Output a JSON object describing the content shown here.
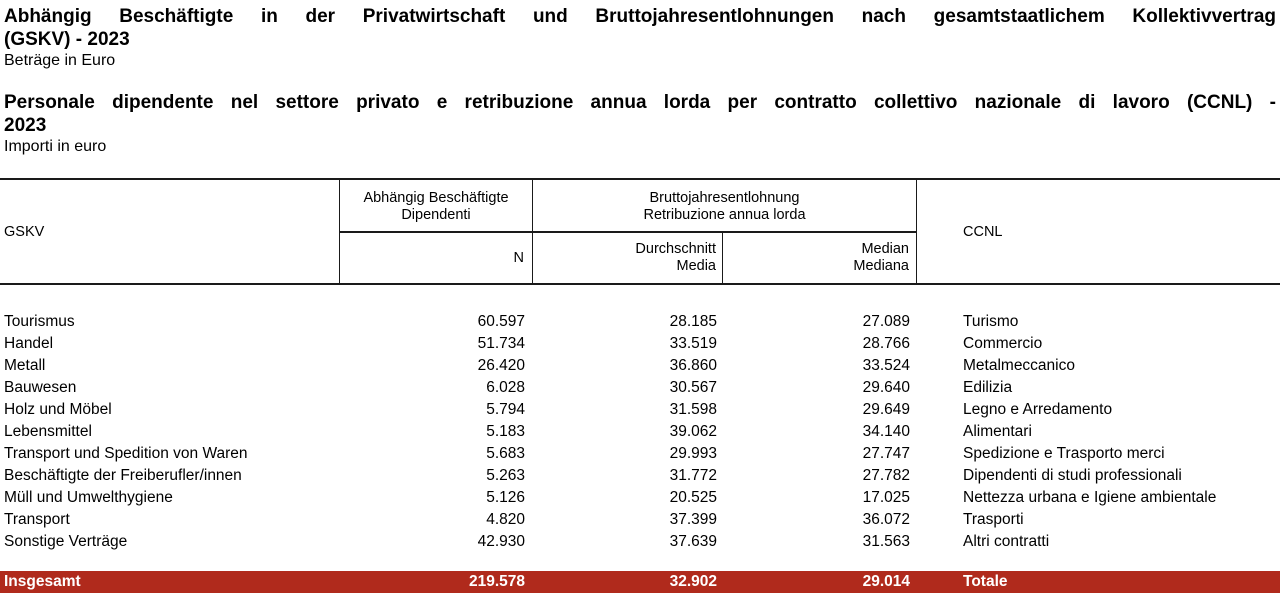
{
  "page": {
    "title_de": {
      "line1": "Abhängig Beschäftigte in der Privatwirtschaft und Bruttojahresentlohnungen nach gesamtstaatlichem Kollektivvertrag",
      "line2": "(GSKV) - 2023",
      "subtitle": "Beträge in Euro"
    },
    "title_it": {
      "line1": "Personale dipendente nel settore privato e retribuzione annua lorda per contratto collettivo nazionale di lavoro (CCNL) -",
      "line2": "2023",
      "subtitle": "Importi in euro"
    }
  },
  "table": {
    "header": {
      "gskv": "GSKV",
      "ccnl": "CCNL",
      "group_employees_de": "Abhängig Beschäftigte",
      "group_employees_it": "Dipendenti",
      "group_pay_de": "Bruttojahresentlohnung",
      "group_pay_it": "Retribuzione annua lorda",
      "sub_n": "N",
      "sub_mean_de": "Durchschnitt",
      "sub_mean_it": "Media",
      "sub_median_de": "Median",
      "sub_median_it": "Mediana"
    },
    "rows": [
      {
        "gskv": "Tourismus",
        "n": "60.597",
        "mean": "28.185",
        "median": "27.089",
        "ccnl": "Turismo"
      },
      {
        "gskv": "Handel",
        "n": "51.734",
        "mean": "33.519",
        "median": "28.766",
        "ccnl": "Commercio"
      },
      {
        "gskv": "Metall",
        "n": "26.420",
        "mean": "36.860",
        "median": "33.524",
        "ccnl": "Metalmeccanico"
      },
      {
        "gskv": "Bauwesen",
        "n": "6.028",
        "mean": "30.567",
        "median": "29.640",
        "ccnl": "Edilizia"
      },
      {
        "gskv": "Holz und Möbel",
        "n": "5.794",
        "mean": "31.598",
        "median": "29.649",
        "ccnl": "Legno e Arredamento"
      },
      {
        "gskv": "Lebensmittel",
        "n": "5.183",
        "mean": "39.062",
        "median": "34.140",
        "ccnl": "Alimentari"
      },
      {
        "gskv": "Transport und Spedition von Waren",
        "n": "5.683",
        "mean": "29.993",
        "median": "27.747",
        "ccnl": "Spedizione e Trasporto merci"
      },
      {
        "gskv": "Beschäftigte der Freiberufler/innen",
        "n": "5.263",
        "mean": "31.772",
        "median": "27.782",
        "ccnl": "Dipendenti di studi professionali"
      },
      {
        "gskv": "Müll und Umwelthygiene",
        "n": "5.126",
        "mean": "20.525",
        "median": "17.025",
        "ccnl": "Nettezza urbana e Igiene ambientale"
      },
      {
        "gskv": "Transport",
        "n": "4.820",
        "mean": "37.399",
        "median": "36.072",
        "ccnl": "Trasporti"
      },
      {
        "gskv": "Sonstige Verträge",
        "n": "42.930",
        "mean": "37.639",
        "median": "31.563",
        "ccnl": "Altri contratti"
      }
    ],
    "total": {
      "gskv": "Insgesamt",
      "n": "219.578",
      "mean": "32.902",
      "median": "29.014",
      "ccnl": "Totale"
    }
  },
  "colors": {
    "total_bg": "#B02A1C",
    "total_text": "#FFFFFF",
    "border": "#1A1A1A"
  },
  "chart_data": {
    "type": "table",
    "title": "Abhängig Beschäftigte in der Privatwirtschaft und Bruttojahresentlohnungen nach gesamtstaatlichem Kollektivvertrag (GSKV) - 2023 / Personale dipendente nel settore privato e retribuzione annua lorda per contratto collettivo nazionale di lavoro (CCNL) - 2023",
    "subtitle": "Beträge in Euro / Importi in euro",
    "columns": [
      "GSKV",
      "Abhängig Beschäftigte / Dipendenti — N",
      "Bruttojahresentlohnung Durchschnitt / Retribuzione annua lorda Media",
      "Bruttojahresentlohnung Median / Retribuzione annua lorda Mediana",
      "CCNL"
    ],
    "rows": [
      {
        "gskv": "Tourismus",
        "n": 60597,
        "mean": 28185,
        "median": 27089,
        "ccnl": "Turismo"
      },
      {
        "gskv": "Handel",
        "n": 51734,
        "mean": 33519,
        "median": 28766,
        "ccnl": "Commercio"
      },
      {
        "gskv": "Metall",
        "n": 26420,
        "mean": 36860,
        "median": 33524,
        "ccnl": "Metalmeccanico"
      },
      {
        "gskv": "Bauwesen",
        "n": 6028,
        "mean": 30567,
        "median": 29640,
        "ccnl": "Edilizia"
      },
      {
        "gskv": "Holz und Möbel",
        "n": 5794,
        "mean": 31598,
        "median": 29649,
        "ccnl": "Legno e Arredamento"
      },
      {
        "gskv": "Lebensmittel",
        "n": 5183,
        "mean": 39062,
        "median": 34140,
        "ccnl": "Alimentari"
      },
      {
        "gskv": "Transport und Spedition von Waren",
        "n": 5683,
        "mean": 29993,
        "median": 27747,
        "ccnl": "Spedizione e Trasporto merci"
      },
      {
        "gskv": "Beschäftigte der Freiberufler/innen",
        "n": 5263,
        "mean": 31772,
        "median": 27782,
        "ccnl": "Dipendenti di studi professionali"
      },
      {
        "gskv": "Müll und Umwelthygiene",
        "n": 5126,
        "mean": 20525,
        "median": 17025,
        "ccnl": "Nettezza urbana e Igiene ambientale"
      },
      {
        "gskv": "Transport",
        "n": 4820,
        "mean": 37399,
        "median": 36072,
        "ccnl": "Trasporti"
      },
      {
        "gskv": "Sonstige Verträge",
        "n": 42930,
        "mean": 37639,
        "median": 31563,
        "ccnl": "Altri contratti"
      }
    ],
    "total": {
      "gskv": "Insgesamt",
      "n": 219578,
      "mean": 32902,
      "median": 29014,
      "ccnl": "Totale"
    }
  }
}
